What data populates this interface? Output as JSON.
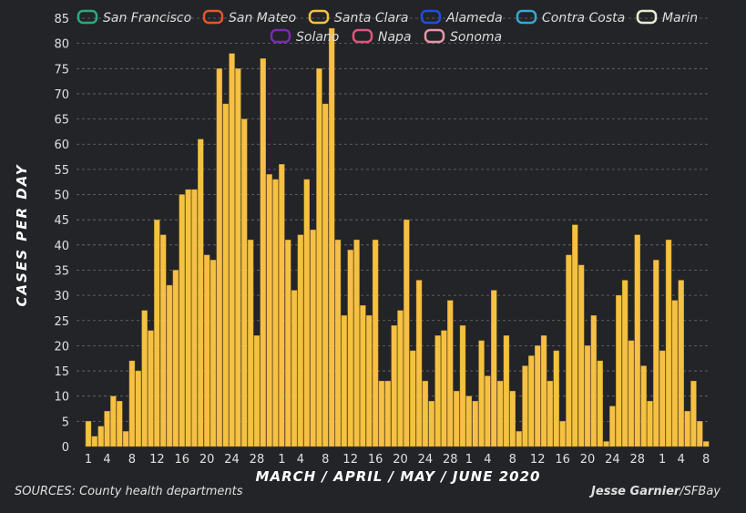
{
  "chart_data": {
    "type": "bar",
    "title": "",
    "xlabel": "MARCH / APRIL / MAY / JUNE 2020",
    "ylabel": "CASES PER DAY",
    "ylim": [
      0,
      85
    ],
    "yticks": [
      0,
      5,
      10,
      15,
      20,
      25,
      30,
      35,
      40,
      45,
      50,
      55,
      60,
      65,
      70,
      75,
      80,
      85
    ],
    "grid": true,
    "legend_position": "top",
    "legend": [
      {
        "name": "San Francisco",
        "color": "#2ca87f"
      },
      {
        "name": "San Mateo",
        "color": "#e0572b"
      },
      {
        "name": "Santa Clara",
        "color": "#f5c142"
      },
      {
        "name": "Alameda",
        "color": "#1f4ee0"
      },
      {
        "name": "Contra Costa",
        "color": "#3aa6d4"
      },
      {
        "name": "Marin",
        "color": "#e8ecd0"
      },
      {
        "name": "Solano",
        "color": "#7a2ab0"
      },
      {
        "name": "Napa",
        "color": "#e0557e"
      },
      {
        "name": "Sonoma",
        "color": "#e895a8"
      }
    ],
    "tick_labels": [
      {
        "label": "1",
        "day": 0
      },
      {
        "label": "4",
        "day": 3
      },
      {
        "label": "8",
        "day": 7
      },
      {
        "label": "12",
        "day": 11
      },
      {
        "label": "16",
        "day": 15
      },
      {
        "label": "20",
        "day": 19
      },
      {
        "label": "24",
        "day": 23
      },
      {
        "label": "28",
        "day": 27
      },
      {
        "label": "1",
        "day": 31
      },
      {
        "label": "4",
        "day": 34
      },
      {
        "label": "8",
        "day": 38
      },
      {
        "label": "12",
        "day": 42
      },
      {
        "label": "16",
        "day": 46
      },
      {
        "label": "20",
        "day": 50
      },
      {
        "label": "24",
        "day": 54
      },
      {
        "label": "28",
        "day": 58
      },
      {
        "label": "1",
        "day": 61
      },
      {
        "label": "4",
        "day": 64
      },
      {
        "label": "8",
        "day": 68
      },
      {
        "label": "12",
        "day": 72
      },
      {
        "label": "16",
        "day": 76
      },
      {
        "label": "20",
        "day": 80
      },
      {
        "label": "24",
        "day": 84
      },
      {
        "label": "28",
        "day": 88
      },
      {
        "label": "1",
        "day": 92
      },
      {
        "label": "4",
        "day": 95
      },
      {
        "label": "8",
        "day": 99
      }
    ],
    "series": [
      {
        "name": "Santa Clara",
        "color": "#f5c142",
        "values": [
          5,
          2,
          4,
          7,
          10,
          9,
          3,
          17,
          15,
          27,
          23,
          45,
          42,
          32,
          35,
          50,
          51,
          51,
          61,
          38,
          37,
          75,
          68,
          78,
          75,
          65,
          41,
          22,
          77,
          54,
          53,
          56,
          41,
          31,
          42,
          53,
          43,
          75,
          68,
          83,
          41,
          26,
          39,
          41,
          28,
          26,
          41,
          13,
          13,
          24,
          27,
          45,
          19,
          33,
          13,
          9,
          22,
          23,
          29,
          11,
          24,
          10,
          9,
          21,
          14,
          31,
          13,
          22,
          11,
          3,
          16,
          18,
          20,
          22,
          13,
          19,
          5,
          38,
          44,
          36,
          20,
          26,
          17,
          1,
          8,
          30,
          33,
          21,
          42,
          16,
          9,
          37,
          19,
          41,
          29,
          33,
          7,
          13,
          5,
          1
        ]
      }
    ]
  },
  "footer": {
    "source": "SOURCES: County health departments",
    "credit_name": "Jesse Garnier",
    "credit_org": "/SFBay"
  }
}
